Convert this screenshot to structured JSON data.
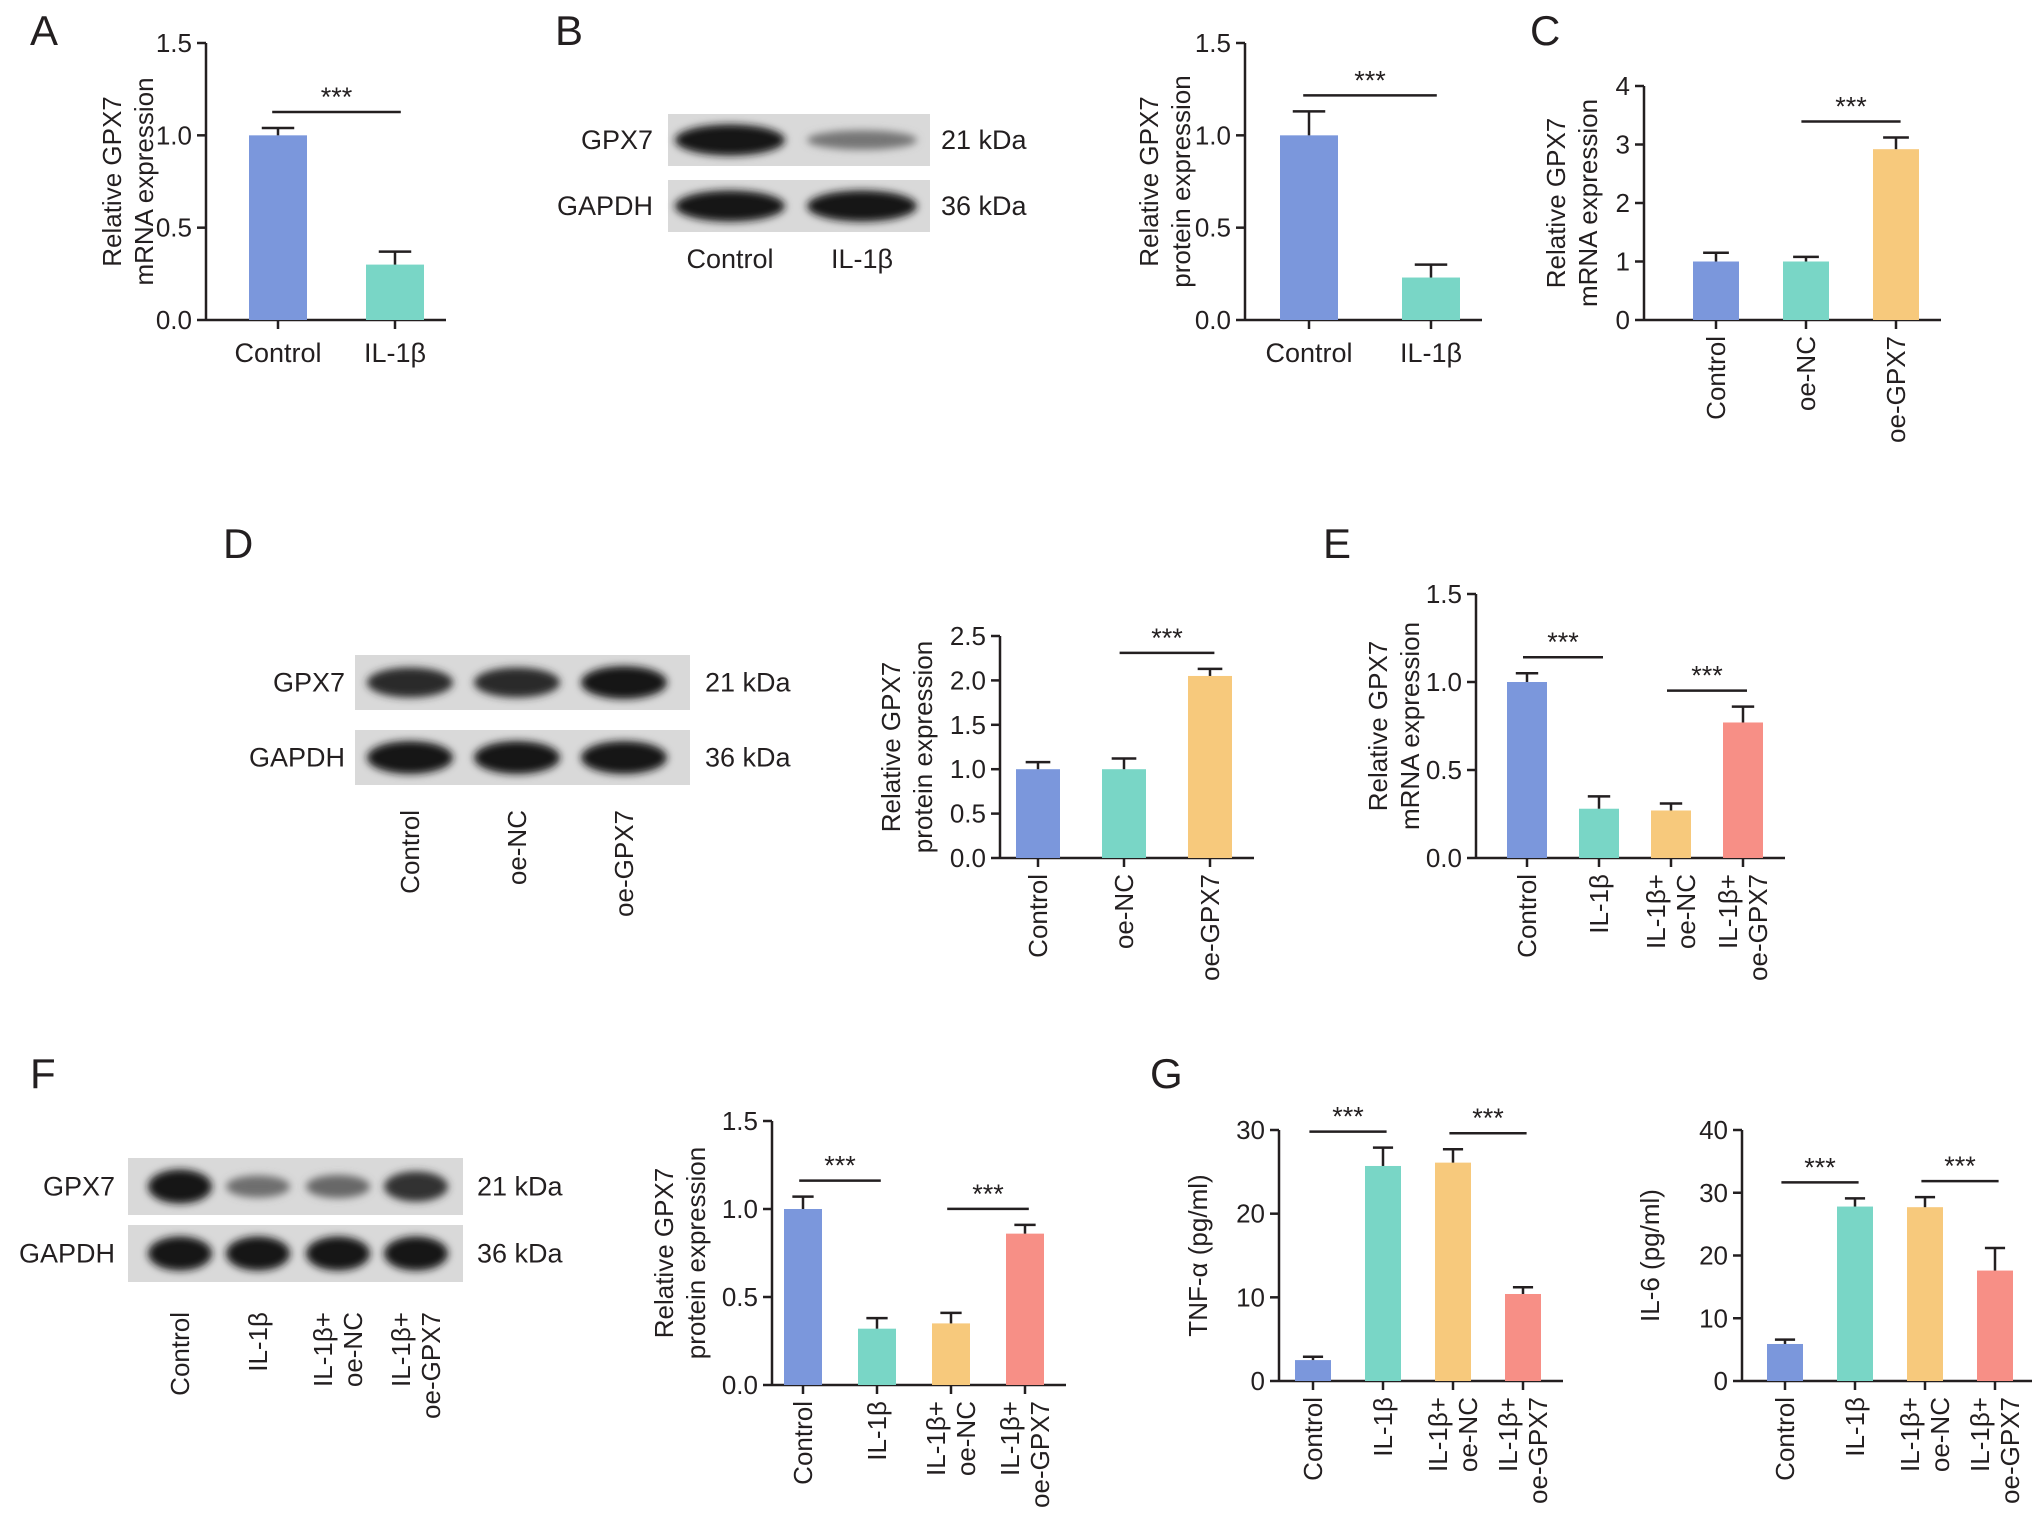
{
  "colors": {
    "control": "#7b97dc",
    "il1b": "#79d6c6",
    "il1b_oenc": "#f7c97c",
    "il1b_oegpx7": "#f78f86",
    "axis": "#231f20"
  },
  "panels": {
    "A": {
      "label": "A"
    },
    "B": {
      "label": "B",
      "blot": {
        "rows": [
          "GPX7",
          "GAPDH"
        ],
        "kda": [
          "21 kDa",
          "36 kDa"
        ],
        "lanes": [
          "Control",
          "IL-1β"
        ],
        "intensity": [
          [
            1.0,
            0.35
          ],
          [
            1.0,
            1.0
          ]
        ]
      }
    },
    "C": {
      "label": "C"
    },
    "D": {
      "label": "D",
      "blot": {
        "rows": [
          "GPX7",
          "GAPDH"
        ],
        "kda": [
          "21 kDa",
          "36 kDa"
        ],
        "lanes": [
          "Control",
          "oe-NC",
          "oe-GPX7"
        ],
        "intensity": [
          [
            0.85,
            0.85,
            1.0
          ],
          [
            1.0,
            1.0,
            1.0
          ]
        ]
      }
    },
    "E": {
      "label": "E"
    },
    "F": {
      "label": "F",
      "blot": {
        "rows": [
          "GPX7",
          "GAPDH"
        ],
        "kda": [
          "21 kDa",
          "36 kDa"
        ],
        "lanes": [
          "Control",
          "IL-1β",
          "IL-1β+\noe-NC",
          "IL-1β+\noe-GPX7"
        ],
        "intensity": [
          [
            1.0,
            0.4,
            0.45,
            0.8
          ],
          [
            1.0,
            1.0,
            1.0,
            1.0
          ]
        ]
      }
    },
    "G": {
      "label": "G"
    }
  },
  "chart_data": [
    {
      "id": "A",
      "type": "bar",
      "categories": [
        "Control",
        "IL-1β"
      ],
      "values": [
        1.0,
        0.3
      ],
      "errors": [
        0.04,
        0.07
      ],
      "ylabel": "Relative GPX7\nmRNA expression",
      "ylim": [
        0,
        1.5
      ],
      "yticks": [
        0.0,
        0.5,
        1.0,
        1.5
      ],
      "ytick_labels": [
        "0.0",
        "0.5",
        "1.0",
        "1.5"
      ],
      "significance": [
        {
          "between": [
            0,
            1
          ],
          "label": "***"
        }
      ]
    },
    {
      "id": "B",
      "type": "bar",
      "categories": [
        "Control",
        "IL-1β"
      ],
      "values": [
        1.0,
        0.23
      ],
      "errors": [
        0.13,
        0.07
      ],
      "ylabel": "Relative GPX7\nprotein expression",
      "ylim": [
        0,
        1.5
      ],
      "yticks": [
        0.0,
        0.5,
        1.0,
        1.5
      ],
      "ytick_labels": [
        "0.0",
        "0.5",
        "1.0",
        "1.5"
      ],
      "significance": [
        {
          "between": [
            0,
            1
          ],
          "label": "***"
        }
      ]
    },
    {
      "id": "C",
      "type": "bar",
      "categories": [
        "Control",
        "oe-NC",
        "oe-GPX7"
      ],
      "values": [
        1.0,
        1.0,
        2.92
      ],
      "errors": [
        0.15,
        0.08,
        0.2
      ],
      "ylabel": "Relative GPX7\nmRNA expression",
      "ylim": [
        0,
        4
      ],
      "yticks": [
        0,
        1,
        2,
        3,
        4
      ],
      "ytick_labels": [
        "0",
        "1",
        "2",
        "3",
        "4"
      ],
      "significance": [
        {
          "between": [
            1,
            2
          ],
          "label": "***"
        }
      ]
    },
    {
      "id": "D",
      "type": "bar",
      "categories": [
        "Control",
        "oe-NC",
        "oe-GPX7"
      ],
      "values": [
        1.0,
        1.0,
        2.05
      ],
      "errors": [
        0.08,
        0.12,
        0.08
      ],
      "ylabel": "Relative GPX7\nprotein expression",
      "ylim": [
        0,
        2.5
      ],
      "yticks": [
        0.0,
        0.5,
        1.0,
        1.5,
        2.0,
        2.5
      ],
      "ytick_labels": [
        "0.0",
        "0.5",
        "1.0",
        "1.5",
        "2.0",
        "2.5"
      ],
      "significance": [
        {
          "between": [
            1,
            2
          ],
          "label": "***"
        }
      ]
    },
    {
      "id": "E",
      "type": "bar",
      "categories": [
        "Control",
        "IL-1β",
        "IL-1β+\noe-NC",
        "IL-1β+\noe-GPX7"
      ],
      "values": [
        1.0,
        0.28,
        0.27,
        0.77
      ],
      "errors": [
        0.05,
        0.07,
        0.04,
        0.09
      ],
      "ylabel": "Relative GPX7\nmRNA expression",
      "ylim": [
        0,
        1.5
      ],
      "yticks": [
        0.0,
        0.5,
        1.0,
        1.5
      ],
      "ytick_labels": [
        "0.0",
        "0.5",
        "1.0",
        "1.5"
      ],
      "significance": [
        {
          "between": [
            0,
            1
          ],
          "label": "***"
        },
        {
          "between": [
            2,
            3
          ],
          "label": "***"
        }
      ]
    },
    {
      "id": "F",
      "type": "bar",
      "categories": [
        "Control",
        "IL-1β",
        "IL-1β+\noe-NC",
        "IL-1β+\noe-GPX7"
      ],
      "values": [
        1.0,
        0.32,
        0.35,
        0.86
      ],
      "errors": [
        0.07,
        0.06,
        0.06,
        0.05
      ],
      "ylabel": "Relative GPX7\nprotein expression",
      "ylim": [
        0,
        1.5
      ],
      "yticks": [
        0.0,
        0.5,
        1.0,
        1.5
      ],
      "ytick_labels": [
        "0.0",
        "0.5",
        "1.0",
        "1.5"
      ],
      "significance": [
        {
          "between": [
            0,
            1
          ],
          "label": "***"
        },
        {
          "between": [
            2,
            3
          ],
          "label": "***"
        }
      ]
    },
    {
      "id": "G1",
      "type": "bar",
      "categories": [
        "Control",
        "IL-1β",
        "IL-1β+\noe-NC",
        "IL-1β+\noe-GPX7"
      ],
      "values": [
        2.5,
        25.7,
        26.1,
        10.4
      ],
      "errors": [
        0.4,
        2.2,
        1.6,
        0.8
      ],
      "ylabel": "TNF-α (pg/ml)",
      "ylim": [
        0,
        30
      ],
      "yticks": [
        0,
        10,
        20,
        30
      ],
      "ytick_labels": [
        "0",
        "10",
        "20",
        "30"
      ],
      "significance": [
        {
          "between": [
            0,
            1
          ],
          "label": "***"
        },
        {
          "between": [
            2,
            3
          ],
          "label": "***"
        }
      ]
    },
    {
      "id": "G2",
      "type": "bar",
      "categories": [
        "Control",
        "IL-1β",
        "IL-1β+\noe-NC",
        "IL-1β+\noe-GPX7"
      ],
      "values": [
        5.9,
        27.8,
        27.7,
        17.6
      ],
      "errors": [
        0.7,
        1.3,
        1.6,
        3.6
      ],
      "ylabel": "IL-6 (pg/ml)",
      "ylim": [
        0,
        40
      ],
      "yticks": [
        0,
        10,
        20,
        30,
        40
      ],
      "ytick_labels": [
        "0",
        "10",
        "20",
        "30",
        "40"
      ],
      "significance": [
        {
          "between": [
            0,
            1
          ],
          "label": "***"
        },
        {
          "between": [
            2,
            3
          ],
          "label": "***"
        }
      ]
    }
  ]
}
